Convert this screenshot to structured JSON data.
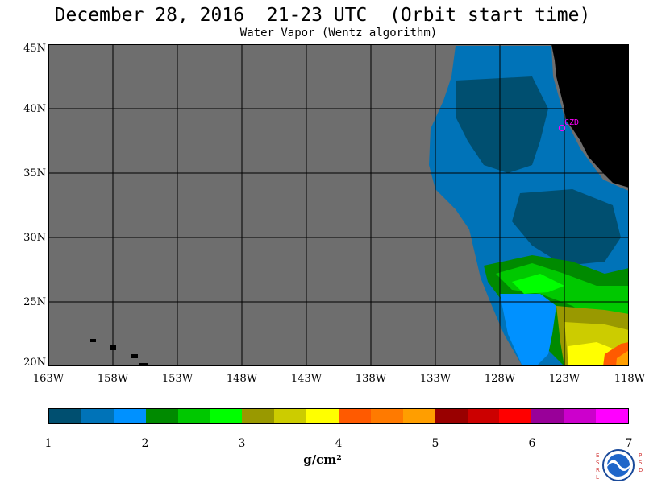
{
  "header": {
    "title": "December 28, 2016  21-23 UTC  (Orbit start time)",
    "subtitle": "Water Vapor (Wentz algorithm)"
  },
  "map": {
    "lat_labels": [
      "45N",
      "40N",
      "35N",
      "30N",
      "25N",
      "20N"
    ],
    "lon_labels": [
      "163W",
      "158W",
      "153W",
      "148W",
      "143W",
      "138W",
      "133W",
      "128W",
      "123W",
      "118W"
    ],
    "station_label": "CZD",
    "colors": {
      "land": "#000000",
      "no_data": "#6e6e6e",
      "grid": "#000000",
      "station": "#ff00ff"
    }
  },
  "colorbar": {
    "tick_labels": [
      "1",
      "2",
      "3",
      "4",
      "5",
      "6",
      "7"
    ],
    "units": "g/cm²",
    "colors": [
      "#004f70",
      "#0073b8",
      "#0091ff",
      "#008a00",
      "#00c800",
      "#00ff00",
      "#999900",
      "#cccc00",
      "#ffff00",
      "#ff5a00",
      "#ff7a00",
      "#ff9e00",
      "#990000",
      "#cc0000",
      "#ff0000",
      "#990099",
      "#cc00cc",
      "#ff00ff"
    ]
  },
  "logo": {
    "left_text": "ESRL",
    "right_text": "PSD",
    "name": "noaa-logo"
  }
}
